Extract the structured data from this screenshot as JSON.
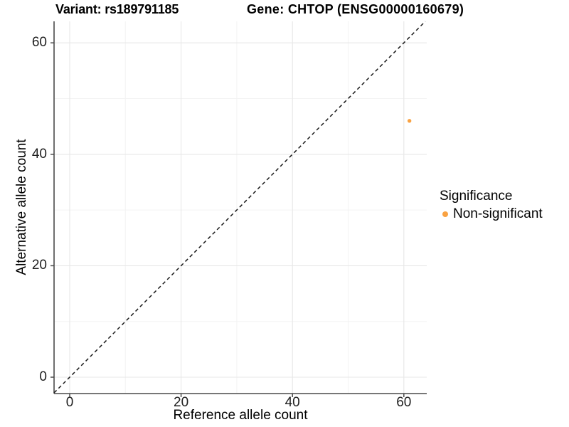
{
  "header": {
    "variant_title": "Variant: rs189791185",
    "gene_title": "Gene: CHTOP (ENSG00000160679)"
  },
  "chart_data": {
    "type": "scatter",
    "xlabel": "Reference allele count",
    "ylabel": "Alternative allele count",
    "xlim": [
      -3,
      64
    ],
    "ylim": [
      -3,
      64
    ],
    "x_ticks": [
      0,
      20,
      40,
      60
    ],
    "y_ticks": [
      0,
      20,
      40,
      60
    ],
    "x_minor_ticks": [
      10,
      30,
      50
    ],
    "y_minor_ticks": [
      10,
      30,
      50
    ],
    "grid": "major+minor",
    "equal_aspect": true,
    "identity_line": {
      "style": "dashed",
      "equation": "y = x",
      "color": "#1a1a1a"
    },
    "series": [
      {
        "name": "Non-significant",
        "color": "#F9A242",
        "points": [
          {
            "x": 61,
            "y": 46
          }
        ]
      }
    ],
    "legend": {
      "title": "Significance",
      "position": "right",
      "entries": [
        {
          "label": "Non-significant",
          "color": "#F9A242"
        }
      ]
    }
  }
}
